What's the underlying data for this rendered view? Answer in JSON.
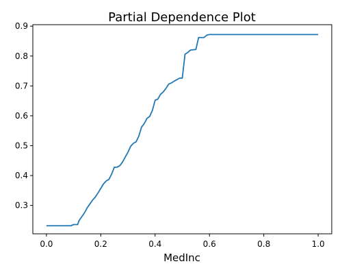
{
  "chart_data": {
    "type": "line",
    "title": "Partial Dependence Plot",
    "xlabel": "MedInc",
    "ylabel": "",
    "xlim": [
      -0.05,
      1.05
    ],
    "ylim": [
      0.205,
      0.905
    ],
    "xticks": [
      0.0,
      0.2,
      0.4,
      0.6,
      0.8,
      1.0
    ],
    "xtick_labels": [
      "0.0",
      "0.2",
      "0.4",
      "0.6",
      "0.8",
      "1.0"
    ],
    "yticks": [
      0.3,
      0.4,
      0.5,
      0.6,
      0.7,
      0.8,
      0.9
    ],
    "ytick_labels": [
      "0.3",
      "0.4",
      "0.5",
      "0.6",
      "0.7",
      "0.8",
      "0.9"
    ],
    "grid": false,
    "legend": false,
    "line_color": "#1f77b4",
    "series": [
      {
        "x": [
          0.0,
          0.09,
          0.1,
          0.115,
          0.12,
          0.13,
          0.14,
          0.15,
          0.16,
          0.17,
          0.18,
          0.19,
          0.2,
          0.21,
          0.22,
          0.23,
          0.24,
          0.25,
          0.26,
          0.27,
          0.28,
          0.29,
          0.3,
          0.31,
          0.32,
          0.33,
          0.34,
          0.35,
          0.36,
          0.37,
          0.38,
          0.39,
          0.4,
          0.41,
          0.42,
          0.43,
          0.44,
          0.45,
          0.46,
          0.47,
          0.48,
          0.49,
          0.5,
          0.51,
          0.52,
          0.53,
          0.54,
          0.55,
          0.56,
          0.57,
          0.58,
          0.59,
          0.6,
          1.0
        ],
        "y": [
          0.232,
          0.232,
          0.236,
          0.236,
          0.249,
          0.262,
          0.275,
          0.292,
          0.305,
          0.318,
          0.328,
          0.342,
          0.357,
          0.372,
          0.382,
          0.387,
          0.405,
          0.428,
          0.428,
          0.433,
          0.445,
          0.462,
          0.478,
          0.498,
          0.508,
          0.513,
          0.532,
          0.562,
          0.574,
          0.591,
          0.598,
          0.618,
          0.652,
          0.656,
          0.672,
          0.68,
          0.692,
          0.706,
          0.71,
          0.716,
          0.721,
          0.726,
          0.726,
          0.806,
          0.812,
          0.82,
          0.821,
          0.822,
          0.862,
          0.862,
          0.862,
          0.87,
          0.872,
          0.872
        ]
      }
    ]
  }
}
